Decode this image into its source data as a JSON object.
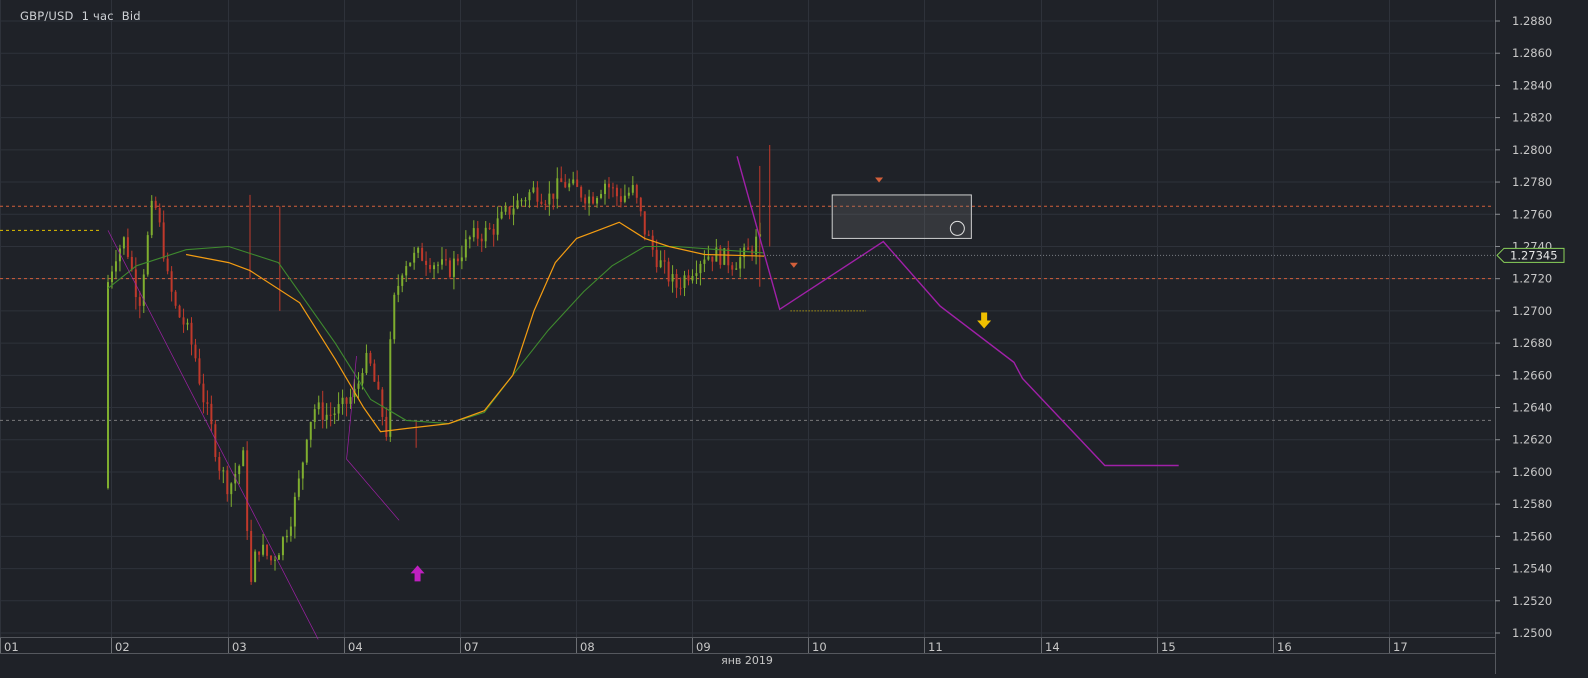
{
  "header": {
    "symbol": "GBP/USD",
    "timeframe": "1 час",
    "price_type": "Bid"
  },
  "colors": {
    "background": "#1f2228",
    "grid": "#2e323a",
    "axis_text": "#c8c8c8",
    "candle_up": "#7fae2f",
    "candle_down": "#c0392b",
    "ma_fast": "#f39c12",
    "ma_slow": "#3f8a2e",
    "pattern": "#a020a8",
    "level_line": "#d35f3a",
    "gray_level": "#7a7a7a",
    "yellow_level": "#e0c000",
    "current_price": "#8bd35a",
    "buy_arrow": "#c020c0",
    "sell_arrow": "#f0c000"
  },
  "chart_data": {
    "type": "candlestick",
    "x_axis_label": "янв 2019",
    "x_ticks": [
      "01",
      "02",
      "03",
      "04",
      "07",
      "08",
      "09",
      "10",
      "11",
      "14",
      "15",
      "16",
      "17"
    ],
    "y_range": [
      1.2495,
      1.2885
    ],
    "y_ticks": [
      "1.2880",
      "1.2860",
      "1.2840",
      "1.2820",
      "1.2800",
      "1.2780",
      "1.2760",
      "1.2740",
      "1.2720",
      "1.2700",
      "1.2680",
      "1.2660",
      "1.2640",
      "1.2620",
      "1.2600",
      "1.2580",
      "1.2560",
      "1.2540",
      "1.2520",
      "1.2500"
    ],
    "current_price": "1.27345",
    "horizontal_levels": [
      {
        "price": 1.2765,
        "style": "dashed",
        "color": "#d35f3a"
      },
      {
        "price": 1.272,
        "style": "dashed",
        "color": "#d35f3a"
      },
      {
        "price": 1.2632,
        "style": "dashed",
        "color": "#7a7a7a"
      },
      {
        "price": 1.275,
        "style": "dashed",
        "color": "#e0c000",
        "from": "01",
        "to": "02"
      },
      {
        "price": 1.27,
        "style": "dotted",
        "color": "#e0c000",
        "from": "09",
        "to": "10"
      }
    ],
    "price_path": [
      [
        0.0,
        1.2718
      ],
      [
        0.05,
        1.2735
      ],
      [
        0.12,
        1.2745
      ],
      [
        0.18,
        1.272
      ],
      [
        0.22,
        1.2705
      ],
      [
        0.28,
        1.2745
      ],
      [
        0.32,
        1.277
      ],
      [
        0.38,
        1.2745
      ],
      [
        0.42,
        1.272
      ],
      [
        0.48,
        1.27
      ],
      [
        0.55,
        1.269
      ],
      [
        0.62,
        1.267
      ],
      [
        0.66,
        1.265
      ],
      [
        0.72,
        1.263
      ],
      [
        0.78,
        1.2605
      ],
      [
        0.85,
        1.259
      ],
      [
        0.9,
        1.26
      ],
      [
        0.96,
        1.261
      ],
      [
        1.0,
        1.2525
      ],
      [
        1.05,
        1.2555
      ],
      [
        1.1,
        1.255
      ],
      [
        1.15,
        1.2545
      ],
      [
        1.22,
        1.2555
      ],
      [
        1.3,
        1.2575
      ],
      [
        1.36,
        1.26
      ],
      [
        1.4,
        1.2625
      ],
      [
        1.45,
        1.264
      ],
      [
        1.55,
        1.2635
      ],
      [
        1.65,
        1.264
      ],
      [
        1.75,
        1.265
      ],
      [
        1.8,
        1.267
      ],
      [
        1.85,
        1.2665
      ],
      [
        1.92,
        1.264
      ],
      [
        1.96,
        1.2625
      ],
      [
        2.0,
        1.27
      ],
      [
        2.08,
        1.273
      ],
      [
        2.2,
        1.2735
      ],
      [
        2.3,
        1.273
      ],
      [
        2.4,
        1.2725
      ],
      [
        2.55,
        1.2745
      ],
      [
        2.7,
        1.275
      ],
      [
        2.85,
        1.2765
      ],
      [
        3.0,
        1.2775
      ],
      [
        3.1,
        1.277
      ],
      [
        3.2,
        1.278
      ],
      [
        3.3,
        1.2775
      ],
      [
        3.4,
        1.277
      ],
      [
        3.5,
        1.278
      ],
      [
        3.6,
        1.277
      ],
      [
        3.7,
        1.2775
      ],
      [
        3.78,
        1.275
      ],
      [
        3.85,
        1.2735
      ],
      [
        3.92,
        1.2725
      ],
      [
        4.0,
        1.2715
      ],
      [
        4.1,
        1.2725
      ],
      [
        4.2,
        1.2735
      ],
      [
        4.3,
        1.2735
      ],
      [
        4.4,
        1.273
      ],
      [
        4.5,
        1.2735
      ],
      [
        4.58,
        1.2745
      ],
      [
        4.62,
        1.2735
      ]
    ],
    "ma_fast": [
      [
        0.55,
        1.2735
      ],
      [
        0.85,
        1.273
      ],
      [
        1.0,
        1.2725
      ],
      [
        1.35,
        1.2705
      ],
      [
        1.6,
        1.267
      ],
      [
        1.8,
        1.264
      ],
      [
        1.92,
        1.2625
      ],
      [
        2.1,
        1.2627
      ],
      [
        2.4,
        1.263
      ],
      [
        2.65,
        1.2638
      ],
      [
        2.85,
        1.266
      ],
      [
        3.0,
        1.27
      ],
      [
        3.15,
        1.273
      ],
      [
        3.3,
        1.2745
      ],
      [
        3.45,
        1.275
      ],
      [
        3.6,
        1.2755
      ],
      [
        3.78,
        1.2745
      ],
      [
        3.95,
        1.274
      ],
      [
        4.2,
        1.2735
      ],
      [
        4.62,
        1.2734
      ]
    ],
    "ma_slow": [
      [
        0.0,
        1.2714
      ],
      [
        0.2,
        1.2728
      ],
      [
        0.55,
        1.2738
      ],
      [
        0.85,
        1.274
      ],
      [
        1.2,
        1.273
      ],
      [
        1.6,
        1.268
      ],
      [
        1.85,
        1.2645
      ],
      [
        2.1,
        1.2632
      ],
      [
        2.4,
        1.263
      ],
      [
        2.65,
        1.2637
      ],
      [
        2.85,
        1.266
      ],
      [
        3.1,
        1.2688
      ],
      [
        3.35,
        1.2712
      ],
      [
        3.55,
        1.2728
      ],
      [
        3.78,
        1.274
      ],
      [
        4.0,
        1.274
      ],
      [
        4.3,
        1.2738
      ],
      [
        4.62,
        1.2736
      ]
    ],
    "pattern_lines": [
      [
        [
          4.43,
          1.2796
        ],
        [
          4.73,
          1.2701
        ],
        [
          5.46,
          1.2743
        ],
        [
          5.86,
          1.2703
        ],
        [
          6.38,
          1.2668
        ],
        [
          6.44,
          1.2658
        ],
        [
          7.02,
          1.2604
        ],
        [
          7.54,
          1.2604
        ]
      ]
    ],
    "pattern_lines_small": [
      [
        [
          0.0,
          1.275
        ],
        [
          1.48,
          1.2496
        ]
      ],
      [
        [
          1.75,
          1.2672
        ],
        [
          1.68,
          1.2608
        ],
        [
          2.05,
          1.257
        ]
      ]
    ],
    "markers": [
      {
        "type": "buy_arrow",
        "x": 2.18,
        "price": 1.2537
      },
      {
        "type": "sell_arrow",
        "x": 6.17,
        "price": 1.2694
      },
      {
        "type": "small_down_triangle",
        "x": 5.43,
        "price": 1.2781
      },
      {
        "type": "small_down_triangle",
        "x": 4.83,
        "price": 1.2728
      }
    ],
    "timer_box": {
      "x0": 5.1,
      "x1": 6.08,
      "price_top": 1.2772,
      "price_bottom": 1.2745
    }
  }
}
